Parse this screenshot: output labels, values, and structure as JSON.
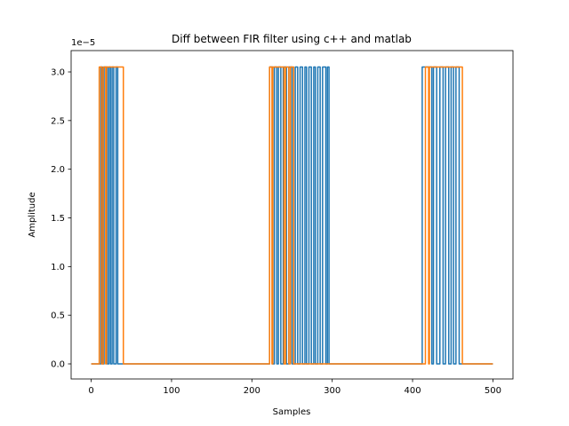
{
  "chart_data": {
    "type": "line",
    "title": "Diff between FIR filter using c++ and matlab",
    "x_label": "Samples",
    "y_label": "Amplitude",
    "y_offset_label": "1e−5",
    "xlim": [
      -25,
      525
    ],
    "ylim": [
      -0.155,
      3.219
    ],
    "xticks": [
      0,
      100,
      200,
      300,
      400,
      500
    ],
    "yticks": [
      {
        "value": 0,
        "label": "0.0"
      },
      {
        "value": 0.5,
        "label": "0.5"
      },
      {
        "value": 1,
        "label": "1.0"
      },
      {
        "value": 1.5,
        "label": "1.5"
      },
      {
        "value": 2,
        "label": "2.0"
      },
      {
        "value": 2.5,
        "label": "2.5"
      },
      {
        "value": 3,
        "label": "3.0"
      }
    ],
    "grid": false,
    "series": [
      {
        "color": "#1f77b4",
        "x": [
          0,
          12,
          12,
          14,
          14,
          16,
          16,
          20,
          20,
          22,
          22,
          24,
          24,
          26,
          26,
          28,
          28,
          31,
          31,
          33,
          33,
          222,
          222,
          226,
          226,
          228,
          228,
          231,
          231,
          233,
          233,
          236,
          236,
          239,
          239,
          243,
          243,
          246,
          246,
          250,
          250,
          254,
          254,
          257,
          257,
          260,
          260,
          263,
          263,
          266,
          266,
          268,
          268,
          271,
          271,
          274,
          274,
          277,
          277,
          279,
          279,
          282,
          282,
          285,
          285,
          288,
          288,
          292,
          292,
          294,
          294,
          296,
          296,
          412,
          412,
          424,
          424,
          426,
          426,
          430,
          430,
          434,
          434,
          438,
          438,
          441,
          441,
          445,
          445,
          448,
          448,
          451,
          451,
          454,
          454,
          458,
          458,
          500
        ],
        "values": [
          0,
          0,
          3.05,
          3.05,
          0,
          0,
          3.05,
          3.05,
          0,
          0,
          3.05,
          3.05,
          0,
          0,
          3.05,
          3.05,
          0,
          0,
          3.05,
          3.05,
          0,
          0,
          3.05,
          3.05,
          0,
          0,
          3.05,
          3.05,
          0,
          0,
          3.05,
          3.05,
          0,
          0,
          3.05,
          3.05,
          0,
          0,
          3.05,
          3.05,
          0,
          0,
          3.05,
          3.05,
          0,
          0,
          3.05,
          3.05,
          0,
          0,
          3.05,
          3.05,
          0,
          0,
          3.05,
          3.05,
          0,
          0,
          3.05,
          3.05,
          0,
          0,
          3.05,
          3.05,
          0,
          0,
          3.05,
          3.05,
          0,
          0,
          3.05,
          3.05,
          0,
          0,
          3.05,
          3.05,
          0,
          0,
          3.05,
          3.05,
          0,
          0,
          3.05,
          3.05,
          0,
          0,
          3.05,
          3.05,
          0,
          0,
          3.05,
          3.05,
          0,
          0,
          3.05,
          3.05,
          0,
          0
        ]
      },
      {
        "color": "#ff7f0e",
        "x": [
          0,
          10,
          10,
          13,
          13,
          15,
          15,
          18,
          18,
          19,
          19,
          40,
          40,
          222,
          222,
          225,
          225,
          226,
          226,
          240,
          240,
          242,
          242,
          246,
          246,
          248,
          248,
          252,
          252,
          416,
          416,
          420,
          420,
          421,
          421,
          462,
          462,
          500
        ],
        "values": [
          0,
          0,
          3.05,
          3.05,
          0,
          0,
          3.05,
          3.05,
          0,
          0,
          3.05,
          3.05,
          0,
          0,
          3.05,
          3.05,
          0,
          0,
          3.05,
          3.05,
          0,
          0,
          3.05,
          3.05,
          0,
          0,
          3.05,
          3.05,
          0,
          0,
          3.05,
          3.05,
          0,
          0,
          3.05,
          3.05,
          0,
          0
        ]
      }
    ]
  }
}
